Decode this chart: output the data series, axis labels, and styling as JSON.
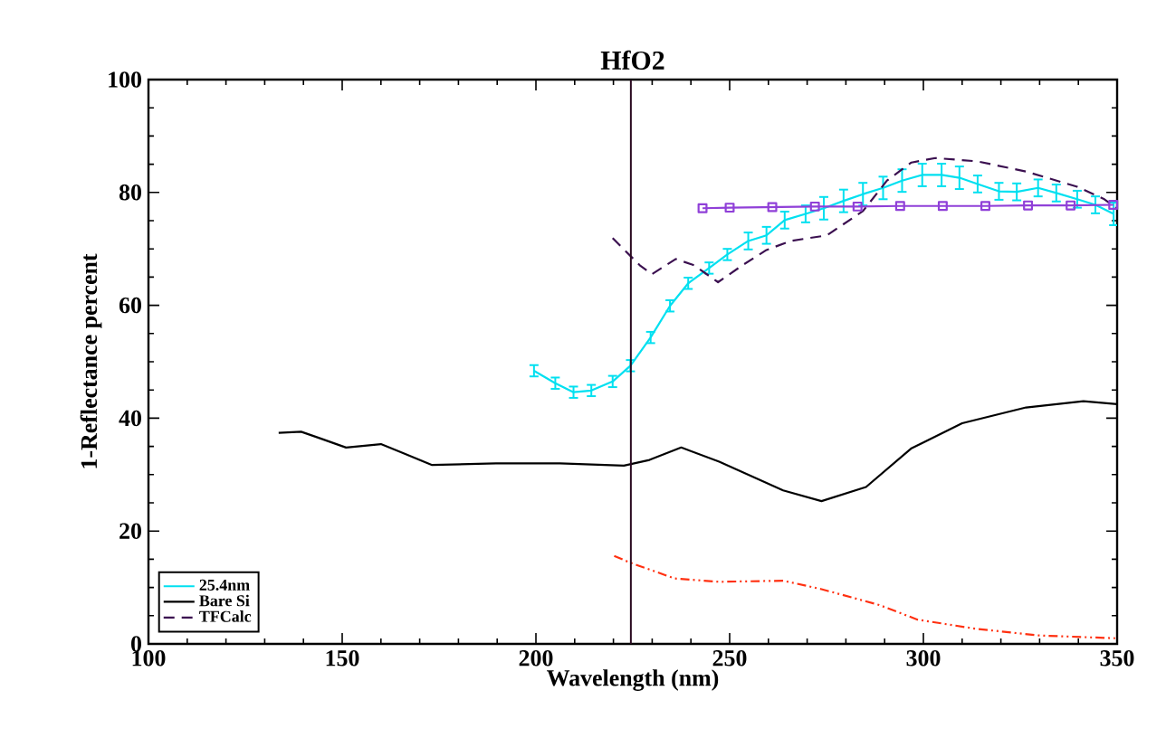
{
  "chart_data": {
    "type": "line",
    "title": "HfO2",
    "xlabel": "Wavelength (nm)",
    "ylabel": "1-Reflectance percent",
    "xlim": [
      100,
      350
    ],
    "ylim": [
      0,
      100
    ],
    "xticks": [
      100,
      150,
      200,
      250,
      300,
      350
    ],
    "yticks": [
      0,
      20,
      40,
      60,
      80,
      100
    ],
    "grid": false,
    "legend": "bottom left",
    "ref_lines": [
      {
        "axis": "x",
        "value": 224.5,
        "color": "#2a0a20"
      }
    ],
    "series": [
      {
        "name": "25.4nm",
        "color": "#00e0f0",
        "line_style": "solid",
        "marker": "none",
        "x": [
          199.5,
          205,
          209.7,
          214.3,
          219.8,
          224.4,
          229.6,
          234.6,
          239.3,
          244.7,
          249.4,
          254.8,
          259.5,
          264.2,
          269.6,
          274.3,
          279.4,
          284.4,
          289.6,
          294.5,
          299.7,
          304.7,
          309.3,
          314,
          319.5,
          324.1,
          329.6,
          334.3,
          339.7,
          344.4,
          349.1
        ],
        "values": [
          48.4,
          46.2,
          44.6,
          44.9,
          46.5,
          49.3,
          54.3,
          59.9,
          63.9,
          66.6,
          69.0,
          71.4,
          72.4,
          75.1,
          76.2,
          77.2,
          78.5,
          79.7,
          80.8,
          82.1,
          83.1,
          83.1,
          82.6,
          81.5,
          80.2,
          80.1,
          80.8,
          79.9,
          78.8,
          77.8,
          76.2
        ],
        "errors": [
          1,
          1,
          1,
          1,
          1,
          1,
          1,
          1,
          1,
          1,
          1,
          1.5,
          1.5,
          1.5,
          1.5,
          2,
          2,
          2,
          2,
          2,
          2,
          2,
          2,
          1.5,
          1.5,
          1.5,
          1.5,
          1.5,
          1.5,
          1.5,
          2
        ]
      },
      {
        "name": "Bare Si",
        "color": "#000000",
        "line_style": "solid",
        "marker": "none",
        "x": [
          133.6,
          139.4,
          143.6,
          151.0,
          160.0,
          165.0,
          173.2,
          189.7,
          206.2,
          222.7,
          229.3,
          237.5,
          247.3,
          263.8,
          273.7,
          285.2,
          296.8,
          310.0,
          326.5,
          341.3,
          350
        ],
        "values": [
          37.4,
          37.6,
          36.6,
          34.8,
          35.4,
          34.0,
          31.7,
          32.0,
          32.0,
          31.6,
          32.6,
          34.8,
          32.3,
          27.2,
          25.3,
          27.8,
          34.6,
          39.1,
          41.9,
          43.0,
          42.5
        ]
      },
      {
        "name": "TFCalc",
        "color": "#3b1050",
        "line_style": "dashed",
        "marker": "none",
        "x": [
          219.8,
          226.8,
          229.9,
          236.1,
          240.8,
          247.0,
          253.3,
          259.5,
          265.7,
          275.1,
          284.4,
          290.6,
          296.9,
          303.1,
          314.0,
          326.5,
          339.7,
          346.7,
          349.8
        ],
        "values": [
          71.9,
          67.1,
          65.5,
          68.2,
          67.1,
          64.1,
          67.1,
          69.8,
          71.4,
          72.4,
          76.7,
          82.1,
          85.3,
          86.1,
          85.5,
          83.7,
          81.0,
          78.8,
          77.2
        ]
      },
      {
        "color": "#9040d8",
        "line_style": "solid",
        "marker": "square",
        "x": [
          243,
          250,
          261,
          272,
          283,
          294,
          305,
          316,
          327,
          338,
          349
        ],
        "values": [
          77.2,
          77.3,
          77.4,
          77.5,
          77.5,
          77.6,
          77.6,
          77.6,
          77.7,
          77.7,
          77.8
        ]
      },
      {
        "color": "#ff3010",
        "line_style": "dashdotdot",
        "marker": "none",
        "x": [
          220.2,
          224.3,
          235.8,
          247.3,
          263.8,
          273.7,
          288.6,
          298.5,
          313.3,
          329.8,
          349.5
        ],
        "values": [
          15.6,
          14.4,
          11.6,
          11.0,
          11.2,
          9.7,
          6.9,
          4.3,
          2.7,
          1.5,
          1.0
        ]
      }
    ]
  }
}
